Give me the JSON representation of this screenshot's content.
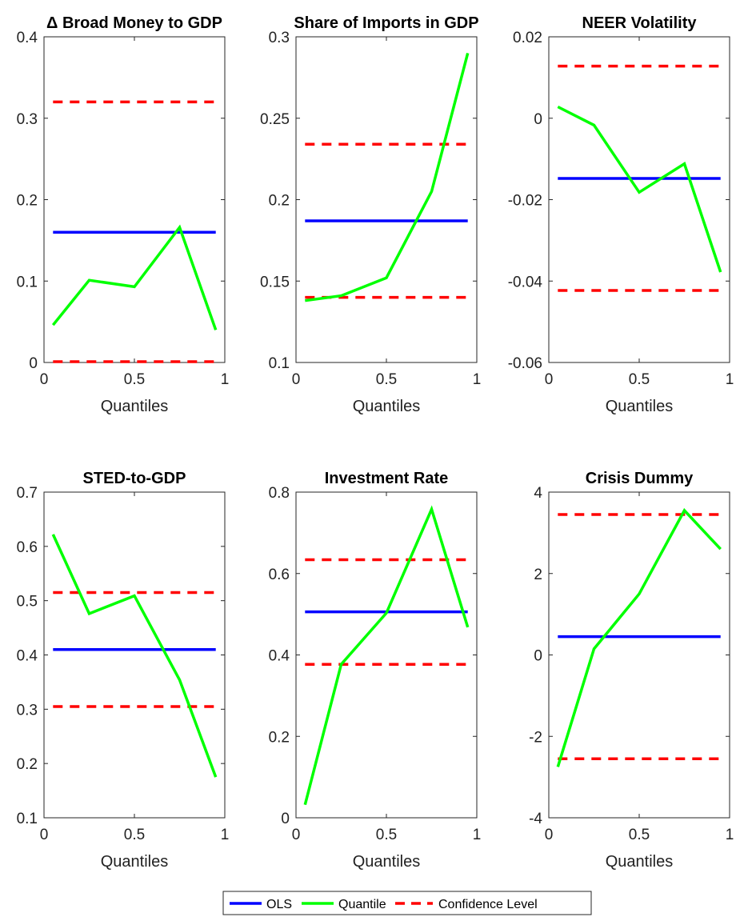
{
  "colors": {
    "ols": "#0000ff",
    "quantile": "#00ff00",
    "confidence": "#ff0000",
    "axis": "#262626"
  },
  "legend": {
    "position": "bottom-center",
    "items": [
      {
        "key": "ols",
        "label": "OLS",
        "style": "solid",
        "color": "#0000ff"
      },
      {
        "key": "quantile",
        "label": "Quantile",
        "style": "solid",
        "color": "#00ff00"
      },
      {
        "key": "confidence",
        "label": "Confidence Level",
        "style": "dashed",
        "color": "#ff0000"
      }
    ]
  },
  "chart_data": [
    {
      "type": "line",
      "title": "Δ Broad Money to GDP",
      "xlabel": "Quantiles",
      "ylabel": "",
      "xlim": [
        0,
        1
      ],
      "ylim": [
        0,
        0.4
      ],
      "xticks": [
        "0",
        "0.5",
        "1"
      ],
      "yticks": [
        0,
        0.1,
        0.2,
        0.3,
        0.4
      ],
      "ytick_labels": [
        "0",
        "0.1",
        "0.2",
        "0.3",
        "0.4"
      ],
      "x_range": [
        0.05,
        0.95
      ],
      "ols": 0.16,
      "conf_upper": 0.32,
      "conf_lower": 0.001,
      "quantile_x": [
        0.05,
        0.25,
        0.5,
        0.75,
        0.95
      ],
      "quantile_y": [
        0.046,
        0.101,
        0.093,
        0.166,
        0.04
      ]
    },
    {
      "type": "line",
      "title": "Share of Imports in GDP",
      "xlabel": "Quantiles",
      "ylabel": "",
      "xlim": [
        0,
        1
      ],
      "ylim": [
        0.1,
        0.3
      ],
      "xticks": [
        "0",
        "0.5",
        "1"
      ],
      "yticks": [
        0.1,
        0.15,
        0.2,
        0.25,
        0.3
      ],
      "ytick_labels": [
        "0.1",
        "0.15",
        "0.2",
        "0.25",
        "0.3"
      ],
      "x_range": [
        0.05,
        0.95
      ],
      "ols": 0.187,
      "conf_upper": 0.234,
      "conf_lower": 0.14,
      "quantile_x": [
        0.05,
        0.25,
        0.5,
        0.75,
        0.95
      ],
      "quantile_y": [
        0.138,
        0.141,
        0.152,
        0.205,
        0.29
      ]
    },
    {
      "type": "line",
      "title": "NEER Volatility",
      "xlabel": "Quantiles",
      "ylabel": "",
      "xlim": [
        0,
        1
      ],
      "ylim": [
        -0.06,
        0.02
      ],
      "xticks": [
        "0",
        "0.5",
        "1"
      ],
      "yticks": [
        -0.06,
        -0.04,
        -0.02,
        0,
        0.02
      ],
      "ytick_labels": [
        "-0.06",
        "-0.04",
        "-0.02",
        "0",
        "0.02"
      ],
      "x_range": [
        0.05,
        0.95
      ],
      "ols": -0.0148,
      "conf_upper": 0.0128,
      "conf_lower": -0.0423,
      "quantile_x": [
        0.05,
        0.25,
        0.5,
        0.75,
        0.95
      ],
      "quantile_y": [
        0.0028,
        -0.0017,
        -0.0182,
        -0.0112,
        -0.0378
      ]
    },
    {
      "type": "line",
      "title": "STED-to-GDP",
      "xlabel": "Quantiles",
      "ylabel": "",
      "xlim": [
        0,
        1
      ],
      "ylim": [
        0.1,
        0.7
      ],
      "xticks": [
        "0",
        "0.5",
        "1"
      ],
      "yticks": [
        0.1,
        0.2,
        0.3,
        0.4,
        0.5,
        0.6,
        0.7
      ],
      "ytick_labels": [
        "0.1",
        "0.2",
        "0.3",
        "0.4",
        "0.5",
        "0.6",
        "0.7"
      ],
      "x_range": [
        0.05,
        0.95
      ],
      "ols": 0.41,
      "conf_upper": 0.515,
      "conf_lower": 0.305,
      "quantile_x": [
        0.05,
        0.25,
        0.5,
        0.75,
        0.95
      ],
      "quantile_y": [
        0.622,
        0.476,
        0.509,
        0.354,
        0.175
      ]
    },
    {
      "type": "line",
      "title": "Investment Rate",
      "xlabel": "Quantiles",
      "ylabel": "",
      "xlim": [
        0,
        1
      ],
      "ylim": [
        0,
        0.8
      ],
      "xticks": [
        "0",
        "0.5",
        "1"
      ],
      "yticks": [
        0,
        0.2,
        0.4,
        0.6,
        0.8
      ],
      "ytick_labels": [
        "0",
        "0.2",
        "0.4",
        "0.6",
        "0.8"
      ],
      "x_range": [
        0.05,
        0.95
      ],
      "ols": 0.506,
      "conf_upper": 0.634,
      "conf_lower": 0.377,
      "quantile_x": [
        0.05,
        0.25,
        0.5,
        0.75,
        0.95
      ],
      "quantile_y": [
        0.032,
        0.377,
        0.503,
        0.758,
        0.468
      ]
    },
    {
      "type": "line",
      "title": "Crisis Dummy",
      "xlabel": "Quantiles",
      "ylabel": "",
      "xlim": [
        0,
        1
      ],
      "ylim": [
        -4,
        4
      ],
      "xticks": [
        "0",
        "0.5",
        "1"
      ],
      "yticks": [
        -4,
        -2,
        0,
        2,
        4
      ],
      "ytick_labels": [
        "-4",
        "-2",
        "0",
        "2",
        "4"
      ],
      "x_range": [
        0.05,
        0.95
      ],
      "ols": 0.45,
      "conf_upper": 3.45,
      "conf_lower": -2.55,
      "quantile_x": [
        0.05,
        0.25,
        0.5,
        0.75,
        0.95
      ],
      "quantile_y": [
        -2.75,
        0.15,
        1.5,
        3.55,
        2.6
      ]
    }
  ]
}
